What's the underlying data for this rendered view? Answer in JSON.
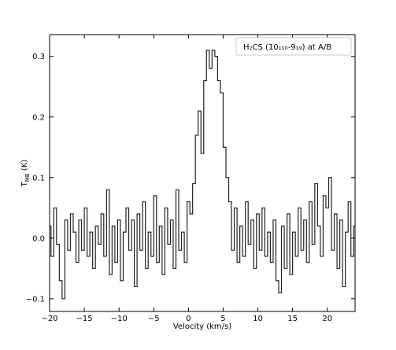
{
  "chart_data": {
    "type": "line",
    "x_label": "Velocity (km/s)",
    "y_label": "T",
    "y_label_sub": "MB",
    "y_label_unit": "(K)",
    "xlim": [
      -20,
      24
    ],
    "ylim": [
      -0.121,
      0.336
    ],
    "xticks": [
      {
        "value": -20,
        "label": "−20"
      },
      {
        "value": -15,
        "label": "−15"
      },
      {
        "value": -10,
        "label": "−10"
      },
      {
        "value": -5,
        "label": "−5"
      },
      0,
      5,
      10,
      15,
      20
    ],
    "yticks": [
      {
        "value": -0.1,
        "label": "−0.1"
      },
      {
        "value": 0,
        "label": "0.0"
      },
      0.1,
      0.2,
      0.3
    ],
    "legend": "upper right",
    "x": [
      -20,
      -19.6,
      -19.2,
      -18.8,
      -18.4,
      -18,
      -17.6,
      -17.2,
      -16.8,
      -16.4,
      -16,
      -15.6,
      -15.2,
      -14.8,
      -14.4,
      -14,
      -13.6,
      -13.2,
      -12.8,
      -12.4,
      -12,
      -11.6,
      -11.2,
      -10.8,
      -10.4,
      -10,
      -9.6,
      -9.2,
      -8.8,
      -8.4,
      -8,
      -7.6,
      -7.2,
      -6.8,
      -6.4,
      -6,
      -5.6,
      -5.2,
      -4.8,
      -4.4,
      -4,
      -3.6,
      -3.2,
      -2.8,
      -2.4,
      -2,
      -1.6,
      -1.2,
      -0.8,
      -0.4,
      0,
      0.4,
      0.8,
      1.2,
      1.6,
      2,
      2.4,
      2.8,
      3.2,
      3.6,
      4,
      4.4,
      4.8,
      5.2,
      5.6,
      6,
      6.4,
      6.8,
      7.2,
      7.6,
      8,
      8.4,
      8.8,
      9.2,
      9.6,
      10,
      10.4,
      10.8,
      11.2,
      11.6,
      12,
      12.4,
      12.8,
      13.2,
      13.6,
      14,
      14.4,
      14.8,
      15.2,
      15.6,
      16,
      16.4,
      16.8,
      17.2,
      17.6,
      18,
      18.4,
      18.8,
      19.2,
      19.6,
      20,
      20.4,
      20.8,
      21.2,
      21.6,
      22,
      22.4,
      22.8,
      23.2,
      23.6,
      24
    ],
    "series": [
      {
        "name": "H₂CS (10₁₁₀-9₁₉) at A/B",
        "color": "#222222",
        "values": [
          0.02,
          -0.03,
          0.05,
          -0.01,
          -0.07,
          -0.1,
          0.03,
          -0.02,
          0.04,
          0.01,
          -0.04,
          0.03,
          -0.02,
          0.05,
          -0.03,
          0.01,
          -0.05,
          0.02,
          -0.01,
          0.04,
          -0.03,
          0.08,
          -0.06,
          0.02,
          -0.04,
          0.03,
          -0.07,
          0.01,
          0.05,
          -0.02,
          0.03,
          -0.08,
          0.04,
          -0.02,
          0.06,
          -0.05,
          0.01,
          -0.03,
          0.07,
          -0.04,
          0.02,
          -0.06,
          0.05,
          -0.01,
          0.03,
          -0.05,
          0.08,
          -0.02,
          0.01,
          -0.04,
          0.06,
          0.04,
          0.09,
          0.17,
          0.21,
          0.14,
          0.26,
          0.31,
          0.28,
          0.31,
          0.3,
          0.26,
          0.24,
          0.15,
          0.1,
          0.06,
          -0.02,
          0.05,
          -0.04,
          0.02,
          -0.03,
          0.06,
          -0.01,
          0.03,
          -0.05,
          0.04,
          -0.02,
          0.05,
          -0.03,
          0.01,
          -0.04,
          0.03,
          -0.07,
          -0.09,
          0.02,
          -0.05,
          0.04,
          -0.06,
          0.01,
          -0.03,
          0.05,
          -0.02,
          0.03,
          -0.04,
          0.06,
          -0.01,
          0.09,
          0.02,
          -0.03,
          0.07,
          0.05,
          0.1,
          -0.02,
          0.04,
          -0.05,
          0.03,
          -0.08,
          0.01,
          0.06,
          -0.03,
          0.02
        ]
      }
    ]
  }
}
